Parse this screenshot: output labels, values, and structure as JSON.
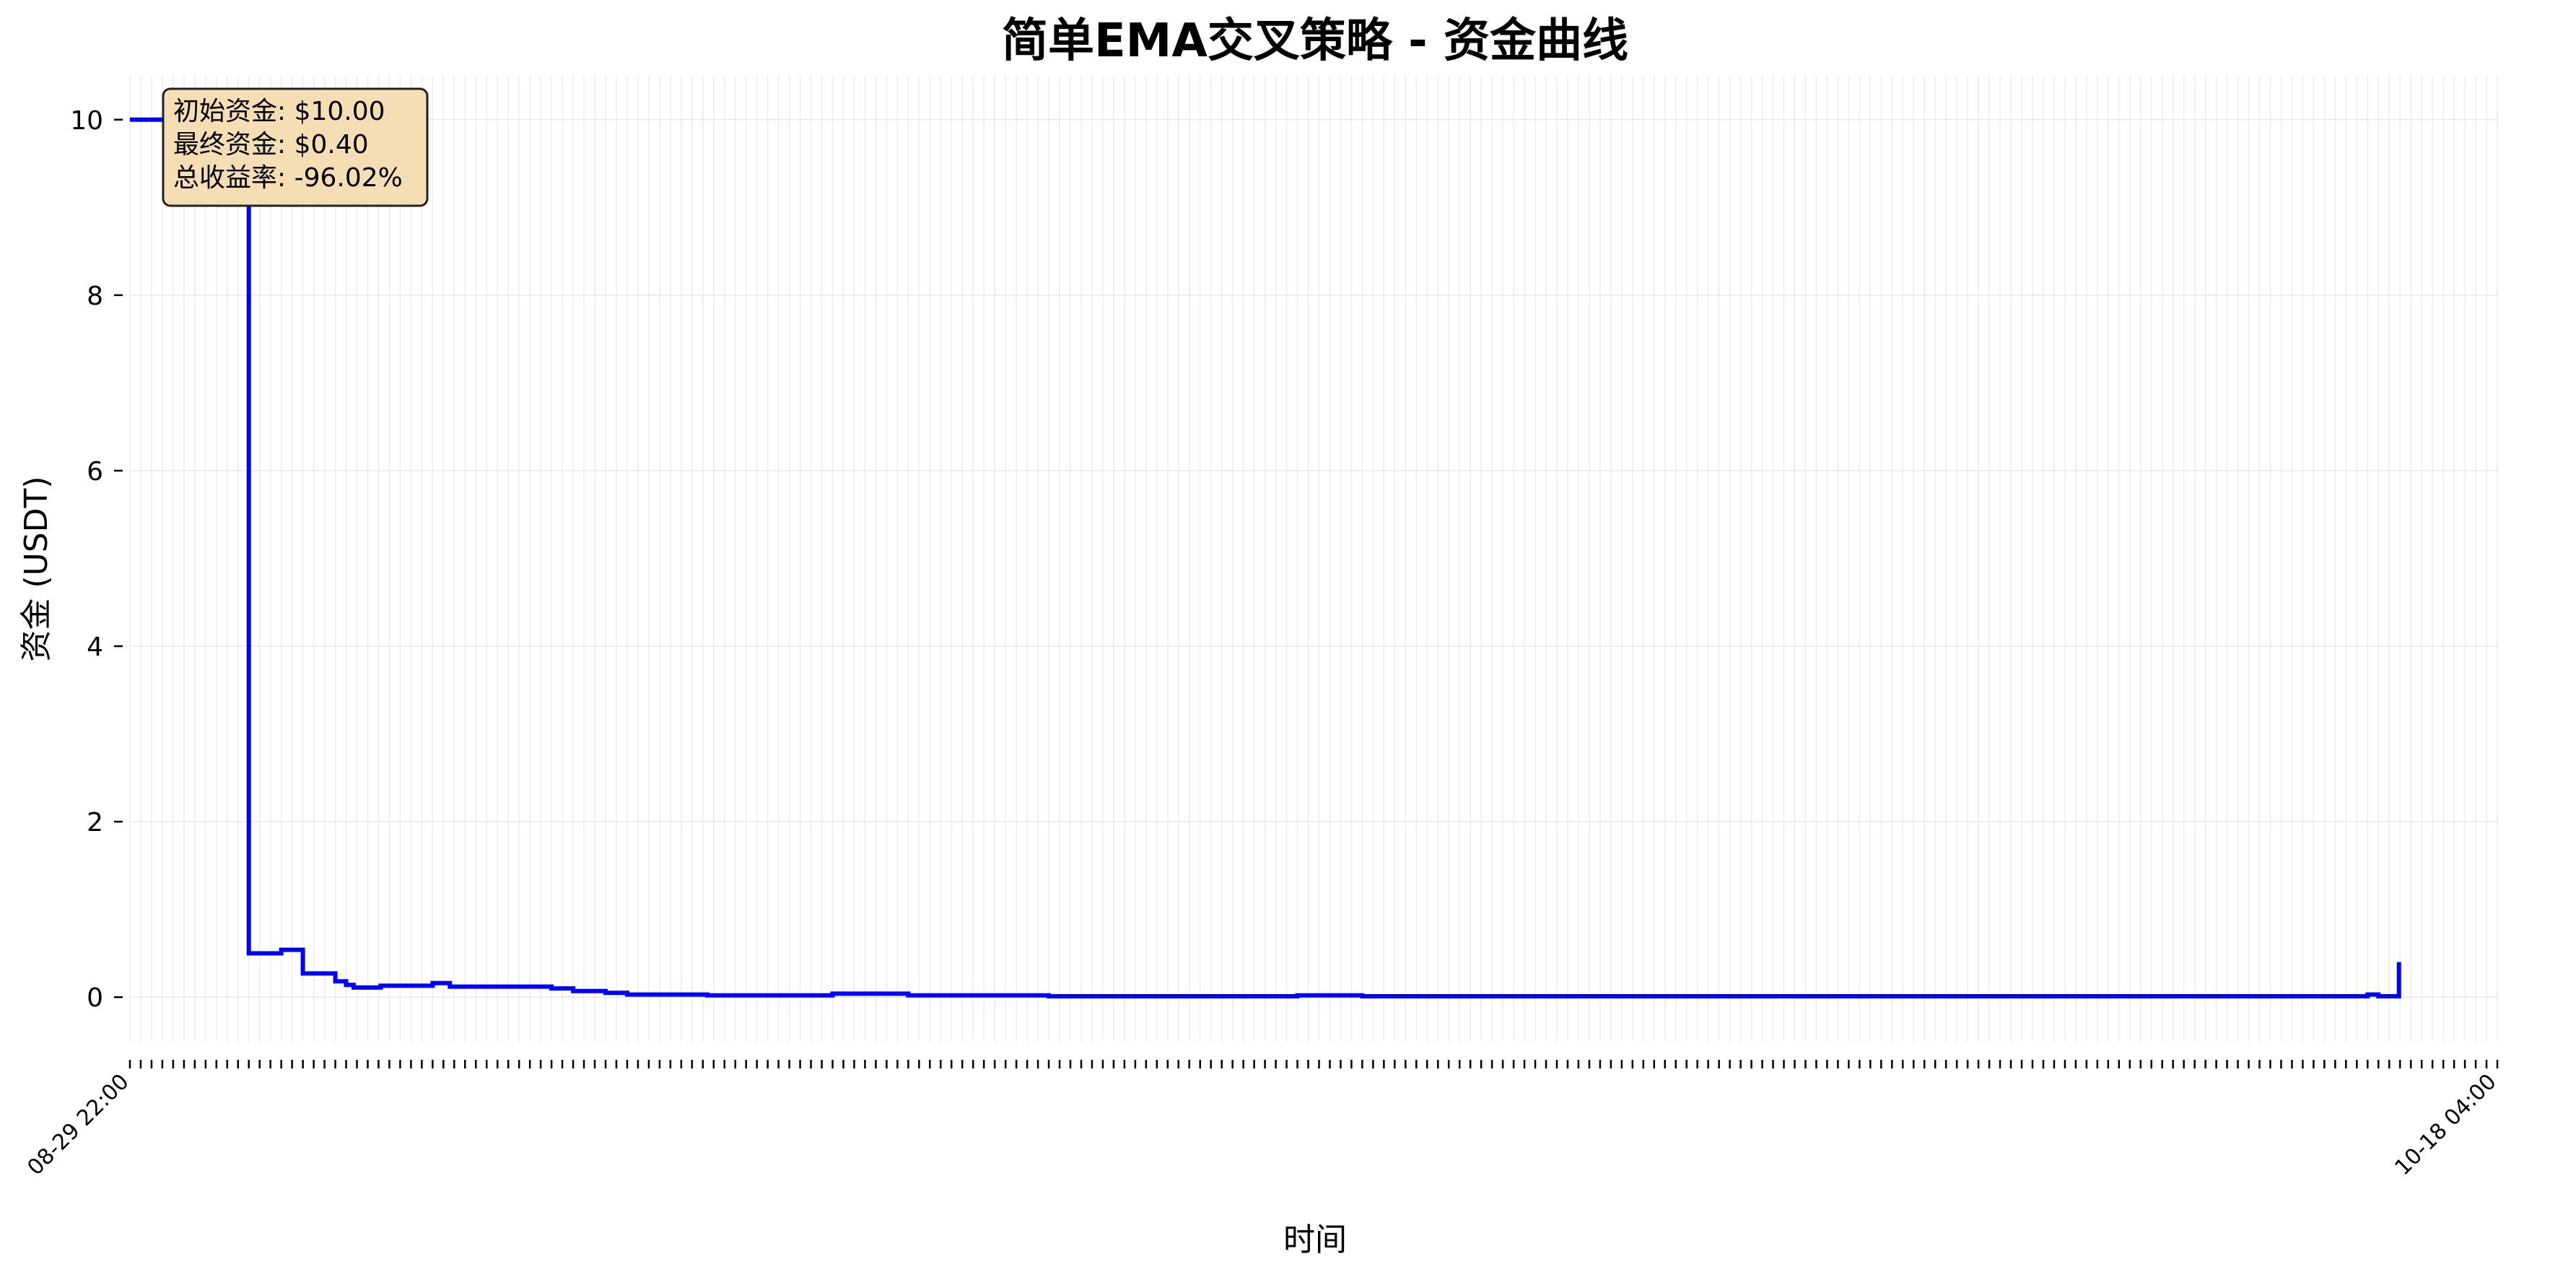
{
  "chart_data": {
    "type": "line",
    "title": "简单EMA交叉策略 - 资金曲线",
    "xlabel": "时间",
    "ylabel": "资金 (USDT)",
    "ylim": [
      -0.5,
      10.5
    ],
    "yticks": [
      0,
      2,
      4,
      6,
      8,
      10
    ],
    "grid": true,
    "x_tick_count": 220,
    "x_range": [
      0,
      219
    ],
    "x_tick_labels": [
      "08-29 22:00",
      "10-18 04:00"
    ],
    "series": [
      {
        "color": "#0000ff",
        "points": [
          [
            0,
            10
          ],
          [
            11,
            10
          ],
          [
            11,
            0.5
          ],
          [
            14,
            0.5
          ],
          [
            14,
            0.54
          ],
          [
            16,
            0.54
          ],
          [
            16,
            0.27
          ],
          [
            19,
            0.27
          ],
          [
            19,
            0.18
          ],
          [
            20,
            0.18
          ],
          [
            20,
            0.14
          ],
          [
            20.7,
            0.14
          ],
          [
            20.7,
            0.11
          ],
          [
            23.2,
            0.11
          ],
          [
            23.2,
            0.13
          ],
          [
            28,
            0.13
          ],
          [
            28,
            0.16
          ],
          [
            29.6,
            0.16
          ],
          [
            29.6,
            0.12
          ],
          [
            39,
            0.12
          ],
          [
            39,
            0.1
          ],
          [
            41,
            0.1
          ],
          [
            41,
            0.07
          ],
          [
            44,
            0.07
          ],
          [
            44,
            0.05
          ],
          [
            46,
            0.05
          ],
          [
            46,
            0.03
          ],
          [
            53.4,
            0.03
          ],
          [
            53.4,
            0.02
          ],
          [
            65,
            0.02
          ],
          [
            65,
            0.04
          ],
          [
            72,
            0.04
          ],
          [
            72,
            0.02
          ],
          [
            85,
            0.02
          ],
          [
            85,
            0.01
          ],
          [
            108,
            0.01
          ],
          [
            108,
            0.02
          ],
          [
            114,
            0.02
          ],
          [
            114,
            0.01
          ],
          [
            207,
            0.01
          ],
          [
            207,
            0.03
          ],
          [
            208,
            0.03
          ],
          [
            208,
            0.01
          ],
          [
            209.9,
            0.01
          ],
          [
            209.9,
            0.4
          ]
        ]
      }
    ]
  },
  "stats_box": {
    "line1": "初始资金: $10.00",
    "line2": "最终资金: $0.40",
    "line3": "总收益率: -96.02%"
  },
  "colors": {
    "line": "#0000ff",
    "stats_box_fill": "#f5deb3",
    "grid": "#d9d9d9"
  }
}
